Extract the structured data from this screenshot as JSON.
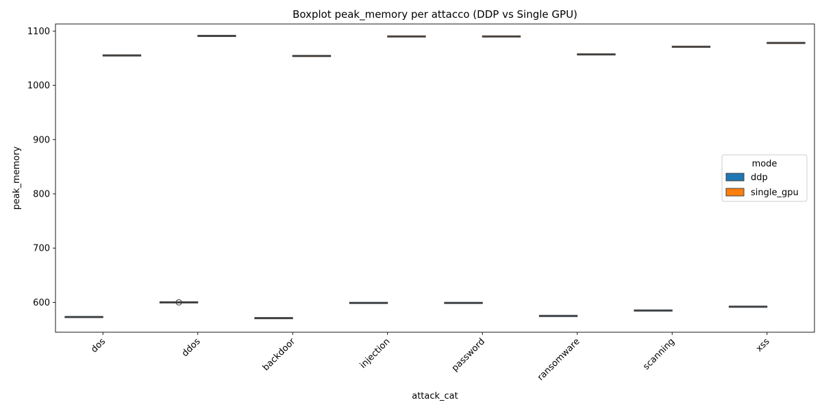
{
  "chart_data": {
    "type": "boxplot",
    "title": "Boxplot peak_memory per attacco (DDP vs Single GPU)",
    "xlabel": "attack_cat",
    "ylabel": "peak_memory",
    "categories": [
      "dos",
      "ddos",
      "backdoor",
      "injection",
      "password",
      "ransomware",
      "scanning",
      "xss"
    ],
    "ylim": [
      545,
      1113
    ],
    "yticks": [
      600,
      700,
      800,
      900,
      1000,
      1100
    ],
    "grid": false,
    "legend": {
      "title": "mode",
      "placement": "center-right"
    },
    "series": [
      {
        "name": "ddp",
        "color": "#1f77b4",
        "values": [
          573,
          600,
          571,
          599,
          599,
          575,
          585,
          592
        ],
        "outliers": [
          [],
          [
            600
          ],
          [],
          [],
          [],
          [],
          [],
          []
        ]
      },
      {
        "name": "single_gpu",
        "color": "#ff7f0e",
        "values": [
          1055,
          1091,
          1054,
          1090,
          1090,
          1057,
          1071,
          1078
        ],
        "outliers": [
          [],
          [],
          [],
          [],
          [],
          [],
          [],
          []
        ]
      }
    ]
  }
}
